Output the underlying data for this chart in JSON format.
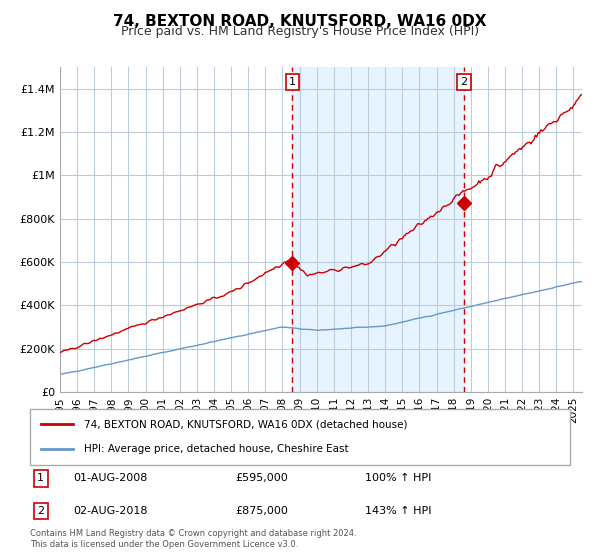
{
  "title": "74, BEXTON ROAD, KNUTSFORD, WA16 0DX",
  "subtitle": "Price paid vs. HM Land Registry's House Price Index (HPI)",
  "legend_line1": "74, BEXTON ROAD, KNUTSFORD, WA16 0DX (detached house)",
  "legend_line2": "HPI: Average price, detached house, Cheshire East",
  "annotation1_label": "1",
  "annotation1_date": "01-AUG-2008",
  "annotation1_price": "£595,000",
  "annotation1_pct": "100% ↑ HPI",
  "annotation2_label": "2",
  "annotation2_date": "02-AUG-2018",
  "annotation2_price": "£875,000",
  "annotation2_pct": "143% ↑ HPI",
  "footer": "Contains HM Land Registry data © Crown copyright and database right 2024.\nThis data is licensed under the Open Government Licence v3.0.",
  "red_color": "#cc0000",
  "blue_color": "#6699cc",
  "bg_shaded_color": "#ddeeff",
  "grid_color": "#bbccdd",
  "ylim": [
    0,
    1500000
  ],
  "yticks": [
    0,
    200000,
    400000,
    600000,
    800000,
    1000000,
    1200000,
    1400000
  ],
  "ytick_labels": [
    "£0",
    "£200K",
    "£400K",
    "£600K",
    "£800K",
    "£1M",
    "£1.2M",
    "£1.4M"
  ],
  "sale1_year": 2008.583,
  "sale1_price": 595000,
  "sale2_year": 2018.583,
  "sale2_price": 875000,
  "xstart": 1995,
  "xend": 2025.5
}
